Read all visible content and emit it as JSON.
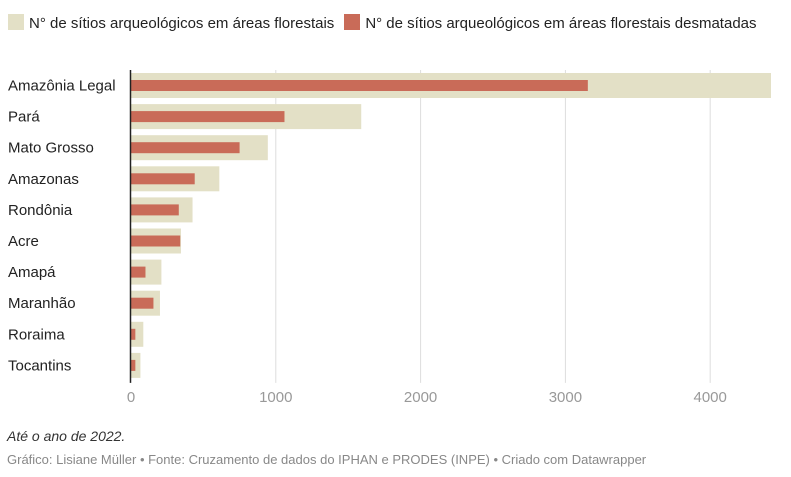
{
  "legend": {
    "series0_label": "N° de sítios arqueológicos em áreas florestais",
    "series1_label": "N° de sítios arqueológicos em áreas florestais desmatadas"
  },
  "colors": {
    "series0": "#e3e0c6",
    "series1": "#c96b58",
    "axis": "#222222",
    "grid": "#dddddd",
    "tick_text": "#999999"
  },
  "chart_data": {
    "type": "bar",
    "orientation": "horizontal",
    "categories": [
      "Amazônia Legal",
      "Pará",
      "Mato Grosso",
      "Amazonas",
      "Rondônia",
      "Acre",
      "Amapá",
      "Maranhão",
      "Roraima",
      "Tocantins"
    ],
    "series": [
      {
        "name": "N° de sítios arqueológicos em áreas florestais",
        "values": [
          4420,
          1590,
          945,
          610,
          425,
          345,
          210,
          200,
          85,
          65
        ]
      },
      {
        "name": "N° de sítios arqueológicos em áreas florestais desmatadas",
        "values": [
          3155,
          1060,
          750,
          440,
          330,
          340,
          100,
          155,
          30,
          30
        ]
      }
    ],
    "xlim": [
      0,
      4420
    ],
    "x_ticks": [
      0,
      1000,
      2000,
      3000,
      4000
    ],
    "x_tick_labels": [
      "0",
      "1000",
      "2000",
      "3000",
      "4000"
    ],
    "grid": true,
    "legend_position": "top-left"
  },
  "footer": {
    "note": "Até o ano de 2022.",
    "credit": "Gráfico: Lisiane Müller • Fonte: Cruzamento de dados do IPHAN e PRODES (INPE) • Criado com Datawrapper"
  }
}
